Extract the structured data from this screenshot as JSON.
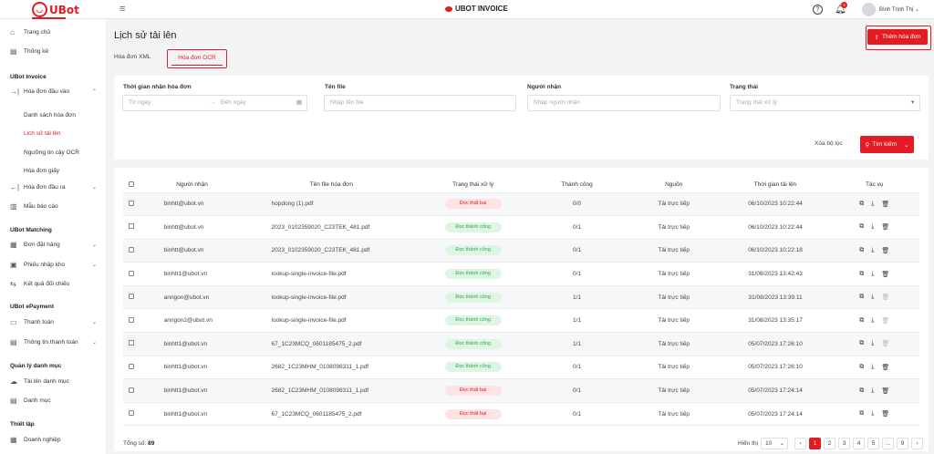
{
  "topbar": {
    "logo_text": "UBot",
    "center_brand": "UBOT INVOICE",
    "notification_count": "9",
    "user_name": "Bình Trịnh Thị"
  },
  "sidebar": {
    "home": "Trang chủ",
    "stats": "Thống kê",
    "section_invoice": "UBot Invoice",
    "invoice_in": "Hóa đơn đầu vào",
    "invoice_list": "Danh sách hóa đơn",
    "upload_history": "Lịch sử tải lên",
    "ocr_threshold": "Ngưỡng tin cậy OCR",
    "paper_invoice": "Hóa đơn giấy",
    "invoice_out": "Hóa đơn đầu ra",
    "report_template": "Mẫu báo cáo",
    "section_matching": "UBot Matching",
    "orders": "Đơn đặt hàng",
    "warehouse_receipt": "Phiếu nhập kho",
    "reconcile_result": "Kết quả đối chiếu",
    "section_epayment": "UBot ePayment",
    "payment": "Thanh toán",
    "payment_info": "Thông tin thanh toán",
    "section_catalog": "Quản lý danh mục",
    "upload_catalog": "Tải lên danh mục",
    "catalog": "Danh mục",
    "section_settings": "Thiết lập",
    "enterprise": "Doanh nghiệp"
  },
  "page": {
    "title": "Lịch sử tải lên",
    "tab_xml": "Hóa đơn XML",
    "tab_ocr": "Hóa đơn OCR",
    "add_button": "Thêm hóa đơn"
  },
  "filters": {
    "date_label": "Thời gian nhận hóa đơn",
    "date_from": "Từ ngày",
    "date_to": "Đến ngày",
    "filename_label": "Tên file",
    "filename_placeholder": "Nhập tên file",
    "receiver_label": "Người nhận",
    "receiver_placeholder": "Nhập người nhận",
    "status_label": "Trạng thái",
    "status_placeholder": "Trạng thái xử lý",
    "clear": "Xóa bộ lọc",
    "search": "Tìm kiếm"
  },
  "table": {
    "headers": [
      "Người nhận",
      "Tên file hóa đơn",
      "Trạng thái xử lý",
      "Thành công",
      "Nguồn",
      "Thời gian tải lên",
      "Tác vụ"
    ],
    "rows": [
      {
        "receiver": "binhtt@ubot.vn",
        "file": "hopdong (1).pdf",
        "status": "Đọc thất bại",
        "ok": false,
        "success": "0/0",
        "source": "Tải trực tiếp",
        "time": "06/10/2023 10:22:44",
        "del": true
      },
      {
        "receiver": "binhtt@ubot.vn",
        "file": "2023_0102359020_C23TEK_481.pdf",
        "status": "Đọc thành công",
        "ok": true,
        "success": "0/1",
        "source": "Tải trực tiếp",
        "time": "06/10/2023 10:22:44",
        "del": true
      },
      {
        "receiver": "binhtt@ubot.vn",
        "file": "2023_0102359020_C23TEK_481.pdf",
        "status": "Đọc thành công",
        "ok": true,
        "success": "0/1",
        "source": "Tải trực tiếp",
        "time": "06/10/2023 10:22:18",
        "del": true
      },
      {
        "receiver": "binhtt1@ubot.vn",
        "file": "lookup-single-invoice-file.pdf",
        "status": "Đọc thành công",
        "ok": true,
        "success": "0/1",
        "source": "Tải trực tiếp",
        "time": "31/08/2023 13:42:43",
        "del": true
      },
      {
        "receiver": "anngon@ubot.vn",
        "file": "lookup-single-invoice-file.pdf",
        "status": "Đọc thành công",
        "ok": true,
        "success": "1/1",
        "source": "Tải trực tiếp",
        "time": "31/08/2023 13:39:11",
        "del": false
      },
      {
        "receiver": "anngon2@ubot.vn",
        "file": "lookup-single-invoice-file.pdf",
        "status": "Đọc thành công",
        "ok": true,
        "success": "1/1",
        "source": "Tải trực tiếp",
        "time": "31/08/2023 13:35:17",
        "del": false
      },
      {
        "receiver": "binhtt1@ubot.vn",
        "file": "67_1C23MCQ_0601185475_2.pdf",
        "status": "Đọc thành công",
        "ok": true,
        "success": "1/1",
        "source": "Tải trực tiếp",
        "time": "05/07/2023 17:26:10",
        "del": false
      },
      {
        "receiver": "binhtt1@ubot.vn",
        "file": "2682_1C23MHM_0108098311_1.pdf",
        "status": "Đọc thành công",
        "ok": true,
        "success": "0/1",
        "source": "Tải trực tiếp",
        "time": "05/07/2023 17:26:10",
        "del": true
      },
      {
        "receiver": "binhtt1@ubot.vn",
        "file": "2682_1C23MHM_0108098311_1.pdf",
        "status": "Đọc thất bại",
        "ok": false,
        "success": "0/1",
        "source": "Tải trực tiếp",
        "time": "05/07/2023 17:24:14",
        "del": true
      },
      {
        "receiver": "binhtt1@ubot.vn",
        "file": "67_1C23MCQ_0601185475_2.pdf",
        "status": "Đọc thất bại",
        "ok": false,
        "success": "0/1",
        "source": "Tải trực tiếp",
        "time": "05/07/2023 17:24:14",
        "del": true
      }
    ]
  },
  "footer": {
    "total_label": "Tổng số:",
    "total_value": "89",
    "per_page_label": "Hiển thị",
    "per_page_value": "10",
    "pages": [
      "1",
      "2",
      "3",
      "4",
      "5",
      "...",
      "9"
    ],
    "current_page": "1"
  },
  "colors": {
    "accent": "#e31b23",
    "success": "#2ea44f"
  },
  "icons": {
    "home": "home-icon",
    "stats": "chart-icon",
    "bell": "bell-icon",
    "help": "help-icon",
    "upload": "upload-icon",
    "search": "search-icon",
    "view": "view-icon",
    "download": "download-icon",
    "delete": "trash-icon"
  }
}
